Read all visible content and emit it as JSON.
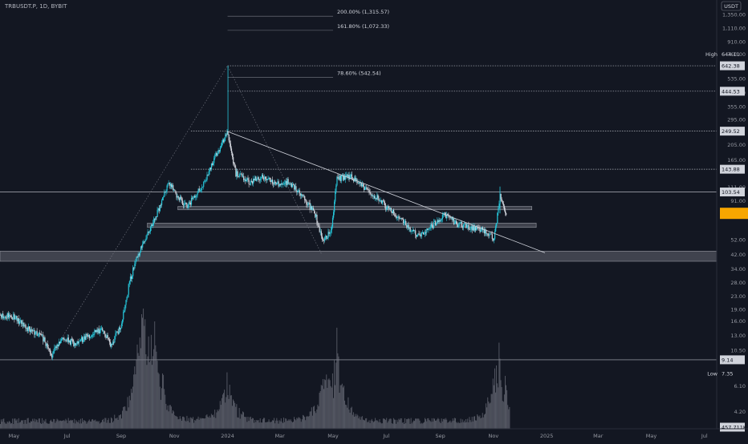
{
  "header": {
    "symbol_line": "TRBUSDT.P, 1D, BYBIT"
  },
  "price_axis": {
    "currency": "USDT",
    "ticks": [
      "1,350.00",
      "1,110.00",
      "910.00",
      "760.00",
      "535.00",
      "435.00",
      "355.00",
      "295.00",
      "205.00",
      "165.00",
      "111.00",
      "91.00",
      "76.00",
      "52.00",
      "42.00",
      "34.00",
      "28.00",
      "23.00",
      "19.00",
      "16.00",
      "13.00",
      "10.50",
      "6.10",
      "4.20"
    ],
    "labels": [
      {
        "value": "644.11",
        "prefix": "High",
        "style": "plain"
      },
      {
        "value": "642.38",
        "style": "boxed"
      },
      {
        "value": "444.53",
        "style": "boxed"
      },
      {
        "value": "249.52",
        "style": "boxed"
      },
      {
        "value": "143.88",
        "style": "boxed"
      },
      {
        "value": "103.54",
        "style": "boxed"
      },
      {
        "value": "",
        "style": "current"
      },
      {
        "value": "9.14",
        "style": "boxed"
      },
      {
        "value": "7.35",
        "prefix": "Low",
        "style": "plain"
      },
      {
        "value": "457.711K",
        "style": "boxed"
      }
    ]
  },
  "time_axis": [
    "May",
    "Jul",
    "Sep",
    "Nov",
    "2024",
    "Mar",
    "May",
    "Jul",
    "Sep",
    "Nov",
    "2025",
    "Mar",
    "May",
    "Jul"
  ],
  "fib_labels": [
    "200.00% (1,315.57)",
    "161.80% (1,072.33)",
    "78.60% (542.54)"
  ],
  "colors": {
    "background": "#131722",
    "candle_up": "#26c6da",
    "candle_down": "#d1d4dc",
    "line": "#b2b5be",
    "zone": "#787b86",
    "volume": "#787b86"
  },
  "chart_data": {
    "type": "candlestick",
    "symbol": "TRBUSDT.P",
    "interval": "1D",
    "exchange": "BYBIT",
    "ylim": [
      4.2,
      1350
    ],
    "y_scale": "log",
    "xlim": [
      "2023-04-15",
      "2025-07-15"
    ],
    "close_series": [
      {
        "date": "2023-04-15",
        "price": 17.5
      },
      {
        "date": "2023-05-01",
        "price": 17.0
      },
      {
        "date": "2023-05-15",
        "price": 14.5
      },
      {
        "date": "2023-06-01",
        "price": 13.0
      },
      {
        "date": "2023-06-13",
        "price": 9.8
      },
      {
        "date": "2023-06-25",
        "price": 12.5
      },
      {
        "date": "2023-07-10",
        "price": 11.5
      },
      {
        "date": "2023-07-25",
        "price": 13.0
      },
      {
        "date": "2023-08-10",
        "price": 14.0
      },
      {
        "date": "2023-08-20",
        "price": 11.2
      },
      {
        "date": "2023-09-01",
        "price": 15.5
      },
      {
        "date": "2023-09-10",
        "price": 28.0
      },
      {
        "date": "2023-09-18",
        "price": 40.0
      },
      {
        "date": "2023-09-25",
        "price": 48.0
      },
      {
        "date": "2023-10-05",
        "price": 62.0
      },
      {
        "date": "2023-10-15",
        "price": 85.0
      },
      {
        "date": "2023-10-25",
        "price": 120.0
      },
      {
        "date": "2023-11-05",
        "price": 95.0
      },
      {
        "date": "2023-11-15",
        "price": 84.0
      },
      {
        "date": "2023-12-01",
        "price": 110.0
      },
      {
        "date": "2023-12-15",
        "price": 160.0
      },
      {
        "date": "2023-12-31",
        "price": 250.0
      },
      {
        "date": "2024-01-10",
        "price": 135.0
      },
      {
        "date": "2024-01-25",
        "price": 120.0
      },
      {
        "date": "2024-02-10",
        "price": 130.0
      },
      {
        "date": "2024-02-25",
        "price": 115.0
      },
      {
        "date": "2024-03-10",
        "price": 120.0
      },
      {
        "date": "2024-03-25",
        "price": 100.0
      },
      {
        "date": "2024-04-10",
        "price": 75.0
      },
      {
        "date": "2024-04-18",
        "price": 52.0
      },
      {
        "date": "2024-04-28",
        "price": 58.0
      },
      {
        "date": "2024-05-05",
        "price": 125.0
      },
      {
        "date": "2024-05-20",
        "price": 130.0
      },
      {
        "date": "2024-06-05",
        "price": 110.0
      },
      {
        "date": "2024-06-20",
        "price": 95.0
      },
      {
        "date": "2024-07-01",
        "price": 82.0
      },
      {
        "date": "2024-07-15",
        "price": 72.0
      },
      {
        "date": "2024-08-05",
        "price": 55.0
      },
      {
        "date": "2024-08-20",
        "price": 62.0
      },
      {
        "date": "2024-09-05",
        "price": 75.0
      },
      {
        "date": "2024-09-20",
        "price": 65.0
      },
      {
        "date": "2024-10-05",
        "price": 62.0
      },
      {
        "date": "2024-10-20",
        "price": 60.0
      },
      {
        "date": "2024-11-01",
        "price": 52.0
      },
      {
        "date": "2024-11-08",
        "price": 100.0
      },
      {
        "date": "2024-11-15",
        "price": 76.0
      }
    ],
    "volume_peaks": [
      {
        "date": "2023-09-25",
        "value": 0.95
      },
      {
        "date": "2023-10-10",
        "value": 0.6
      },
      {
        "date": "2023-12-31",
        "value": 0.35
      },
      {
        "date": "2024-04-20",
        "value": 0.3
      },
      {
        "date": "2024-05-05",
        "value": 0.55
      },
      {
        "date": "2024-11-07",
        "value": 0.6
      }
    ],
    "horizontal_levels": [
      642.38,
      444.53,
      249.52,
      143.88,
      103.54,
      9.14
    ],
    "zones": [
      {
        "from": "2023-11-05",
        "to": "2024-12-15",
        "low": 80,
        "high": 84
      },
      {
        "from": "2023-10-01",
        "to": "2024-12-20",
        "low": 62,
        "high": 66
      },
      {
        "from": "2023-04-15",
        "to": "2025-07-15",
        "low": 38,
        "high": 44
      }
    ],
    "trendline": {
      "from": {
        "date": "2023-12-31",
        "price": 249.52
      },
      "to": {
        "date": "2024-12-30",
        "price": 43
      }
    },
    "fib_levels": [
      {
        "label": "200.00% (1,315.57)",
        "price": 1315.57
      },
      {
        "label": "161.80% (1,072.33)",
        "price": 1072.33
      },
      {
        "label": "78.60% (542.54)",
        "price": 542.54
      }
    ]
  }
}
